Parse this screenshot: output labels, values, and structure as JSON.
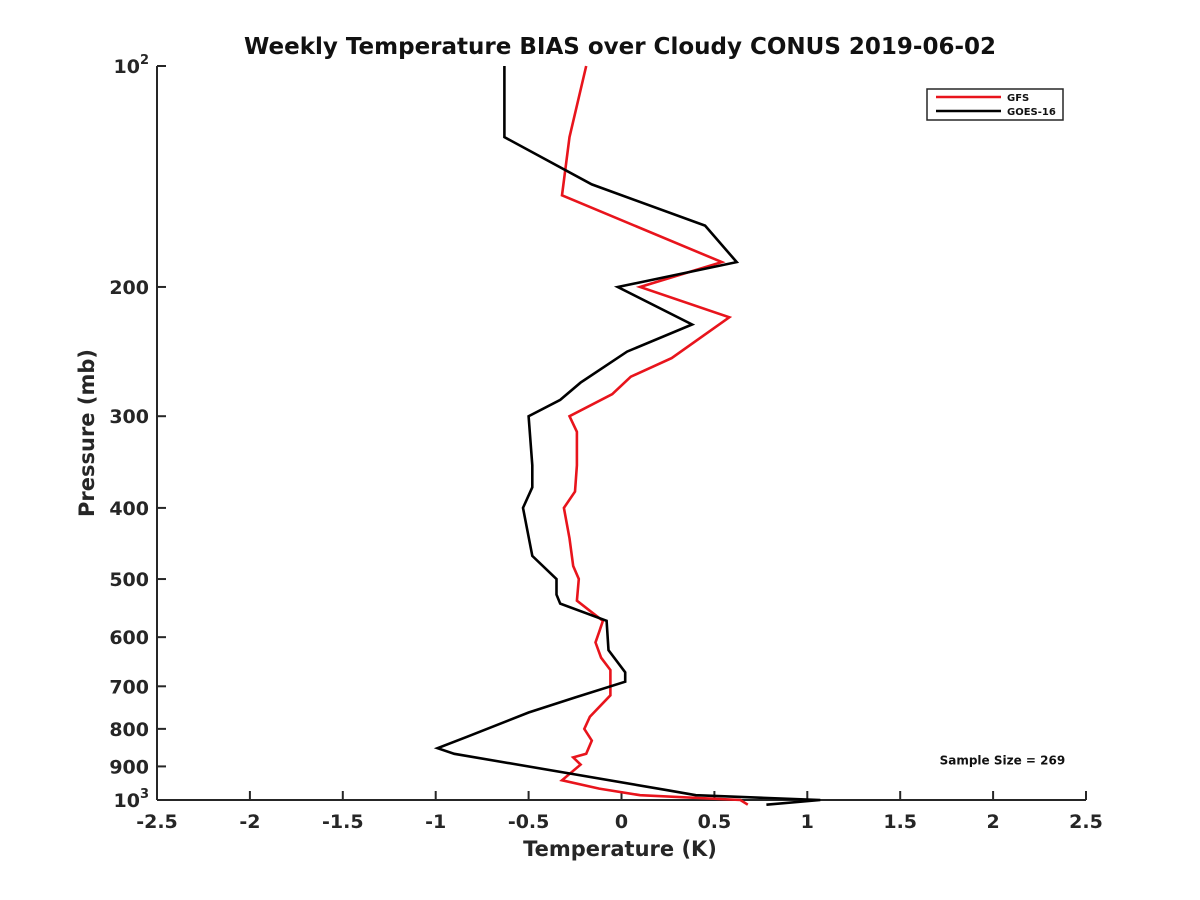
{
  "chart_data": {
    "type": "line",
    "title": "Weekly Temperature BIAS over Cloudy CONUS 2019-06-02",
    "xlabel": "Temperature (K)",
    "ylabel": "Pressure (mb)",
    "xlim": [
      -2.5,
      2.5
    ],
    "ylim": [
      1000,
      100
    ],
    "y_scale": "log",
    "y_inverted": true,
    "grid": false,
    "legend_position": "top-right",
    "x_ticks": [
      "-2.5",
      "-2",
      "-1.5",
      "-1",
      "-0.5",
      "0",
      "0.5",
      "1",
      "1.5",
      "2",
      "2.5"
    ],
    "y_ticks": [
      {
        "value": 100,
        "base": "10",
        "exp": "2",
        "label": ""
      },
      {
        "value": 200,
        "label": "200"
      },
      {
        "value": 300,
        "label": "300"
      },
      {
        "value": 400,
        "label": "400"
      },
      {
        "value": 500,
        "label": "500"
      },
      {
        "value": 600,
        "label": "600"
      },
      {
        "value": 700,
        "label": "700"
      },
      {
        "value": 800,
        "label": "800"
      },
      {
        "value": 900,
        "label": "900"
      },
      {
        "value": 1000,
        "base": "10",
        "exp": "3",
        "label": ""
      }
    ],
    "series": [
      {
        "name": "GFS",
        "color": "#e8141c",
        "points": [
          [
            -0.19,
            100
          ],
          [
            -0.28,
            125
          ],
          [
            -0.32,
            150
          ],
          [
            0.54,
            185
          ],
          [
            0.1,
            200
          ],
          [
            0.58,
            220
          ],
          [
            0.27,
            250
          ],
          [
            0.05,
            265
          ],
          [
            -0.05,
            280
          ],
          [
            -0.28,
            300
          ],
          [
            -0.24,
            315
          ],
          [
            -0.24,
            350
          ],
          [
            -0.25,
            380
          ],
          [
            -0.31,
            400
          ],
          [
            -0.28,
            440
          ],
          [
            -0.26,
            480
          ],
          [
            -0.23,
            500
          ],
          [
            -0.24,
            535
          ],
          [
            -0.16,
            555
          ],
          [
            -0.1,
            570
          ],
          [
            -0.12,
            590
          ],
          [
            -0.14,
            610
          ],
          [
            -0.11,
            640
          ],
          [
            -0.06,
            665
          ],
          [
            -0.06,
            720
          ],
          [
            -0.17,
            770
          ],
          [
            -0.2,
            800
          ],
          [
            -0.16,
            830
          ],
          [
            -0.19,
            865
          ],
          [
            -0.26,
            875
          ],
          [
            -0.22,
            895
          ],
          [
            -0.32,
            940
          ],
          [
            -0.12,
            965
          ],
          [
            0.1,
            985
          ],
          [
            0.64,
            1000
          ],
          [
            0.68,
            1015
          ]
        ]
      },
      {
        "name": "GOES-16",
        "color": "#000000",
        "points": [
          [
            -0.63,
            100
          ],
          [
            -0.63,
            125
          ],
          [
            -0.16,
            145
          ],
          [
            0.45,
            165
          ],
          [
            0.62,
            185
          ],
          [
            -0.02,
            200
          ],
          [
            0.38,
            225
          ],
          [
            0.03,
            245
          ],
          [
            -0.22,
            270
          ],
          [
            -0.33,
            285
          ],
          [
            -0.5,
            300
          ],
          [
            -0.48,
            350
          ],
          [
            -0.48,
            375
          ],
          [
            -0.53,
            400
          ],
          [
            -0.48,
            465
          ],
          [
            -0.35,
            500
          ],
          [
            -0.35,
            525
          ],
          [
            -0.33,
            540
          ],
          [
            -0.08,
            570
          ],
          [
            -0.07,
            625
          ],
          [
            0.02,
            670
          ],
          [
            0.02,
            690
          ],
          [
            -0.25,
            725
          ],
          [
            -0.5,
            760
          ],
          [
            -0.83,
            820
          ],
          [
            -0.99,
            850
          ],
          [
            -0.9,
            865
          ],
          [
            0.25,
            970
          ],
          [
            0.4,
            985
          ],
          [
            1.07,
            1000
          ],
          [
            0.78,
            1015
          ]
        ]
      }
    ],
    "annotations": [
      {
        "text": "Sample Size = 269",
        "x": 2.05,
        "y": 895
      }
    ]
  }
}
